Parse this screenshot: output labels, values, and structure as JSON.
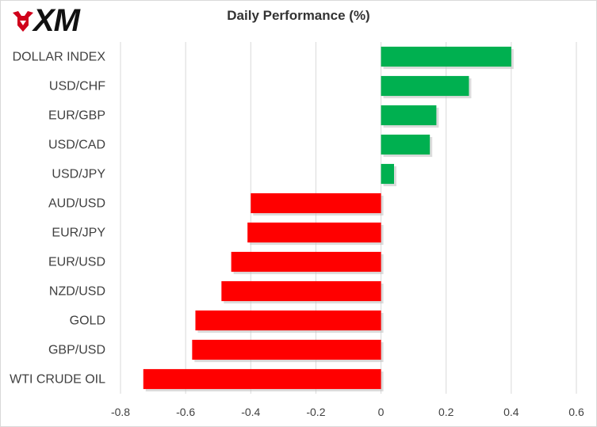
{
  "brand": {
    "logo_text": "XM",
    "logo_icon": "bull-icon",
    "logo_color": "#d0021b"
  },
  "chart_data": {
    "type": "bar",
    "orientation": "horizontal",
    "title": "Daily Performance  (%)",
    "categories": [
      "DOLLAR INDEX",
      "USD/CHF",
      "EUR/GBP",
      "USD/CAD",
      "USD/JPY",
      "AUD/USD",
      "EUR/JPY",
      "EUR/USD",
      "NZD/USD",
      "GOLD",
      "GBP/USD",
      "WTI CRUDE OIL"
    ],
    "values": [
      0.4,
      0.27,
      0.17,
      0.15,
      0.04,
      -0.4,
      -0.41,
      -0.46,
      -0.49,
      -0.57,
      -0.58,
      -0.73
    ],
    "xlim": [
      -0.8,
      0.6
    ],
    "xticks": [
      -0.8,
      -0.6,
      -0.4,
      -0.2,
      0,
      0.2,
      0.4,
      0.6
    ],
    "xtick_labels": [
      "-0.8",
      "-0.6",
      "-0.4",
      "-0.2",
      "0",
      "0.2",
      "0.4",
      "0.6"
    ],
    "grid": true,
    "positive_color": "#00b050",
    "negative_color": "#ff0000",
    "grid_color": "#d9d9d9"
  }
}
